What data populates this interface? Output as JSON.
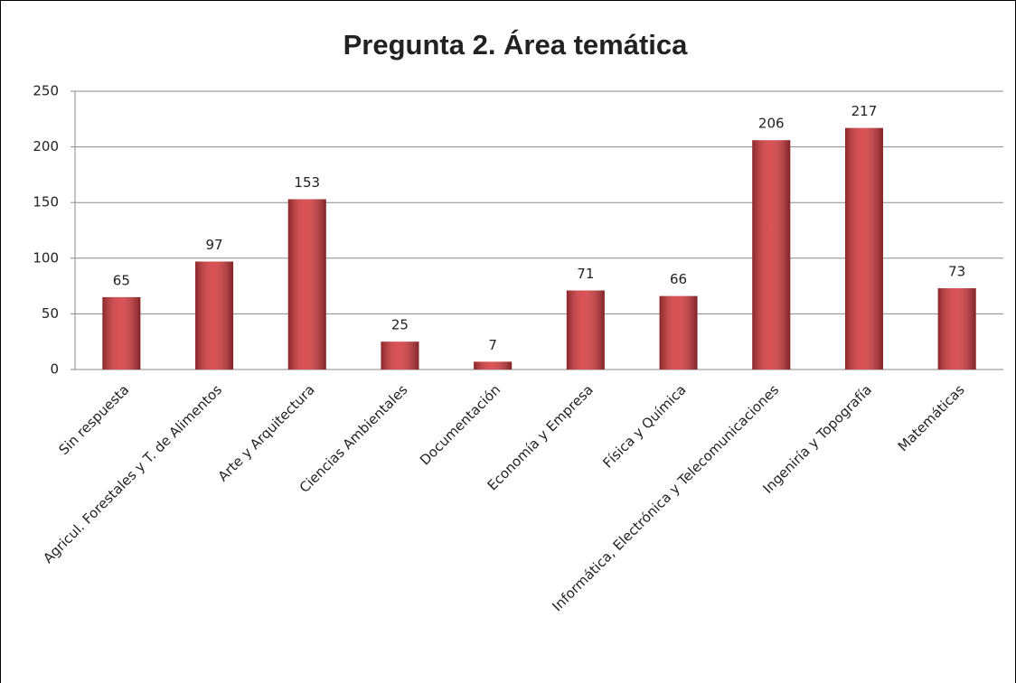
{
  "chart_data": {
    "type": "bar",
    "title": "Pregunta 2. Área temática",
    "categories": [
      "Sin respuesta",
      "Agricul. Forestales y T. de Alimentos",
      "Arte y Arquitectura",
      "Ciencias Ambientales",
      "Documentación",
      "Economía y Empresa",
      "Física y Química",
      "Informática, Electrónica y Telecomunicaciones",
      "Ingeniría y Topografía",
      "Matemáticas"
    ],
    "values": [
      65,
      97,
      153,
      25,
      7,
      71,
      66,
      206,
      217,
      73
    ],
    "color": "#d63a3e",
    "ylim": [
      0,
      250
    ],
    "yticks": [
      0,
      50,
      100,
      150,
      200,
      250
    ],
    "grid": true
  }
}
